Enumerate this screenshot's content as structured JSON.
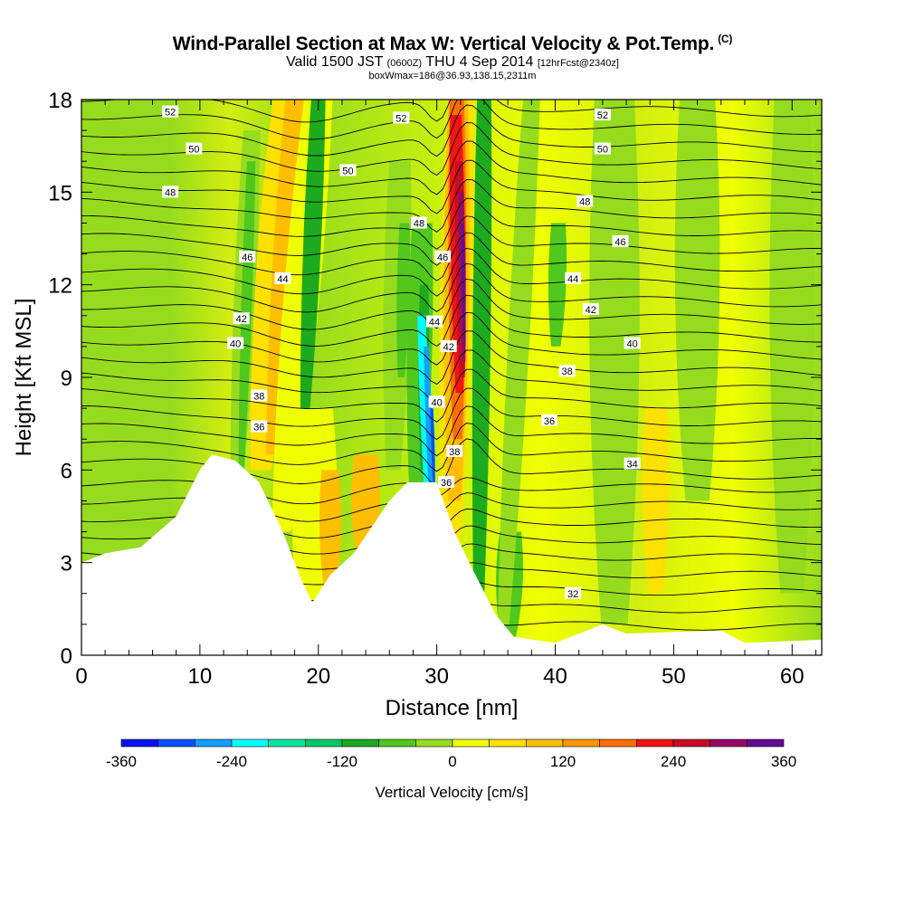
{
  "header": {
    "title": "Wind-Parallel Section at Max W: Vertical Velocity & Pot.Temp.",
    "copyright": "(C)",
    "valid_part1": "Valid 1500 JST",
    "valid_zulu": "(0600Z)",
    "valid_part2": "THU 4 Sep 2014",
    "forecast": "[12hrFcst@2340z]",
    "box_info": "boxWmax=186@36.93,138.15,2311m"
  },
  "chart_data": {
    "type": "heatmap",
    "xlabel": "Distance [nm]",
    "ylabel": "Height [Kft MSL]",
    "xlim": [
      0,
      62.5
    ],
    "ylim": [
      0,
      18
    ],
    "x_ticks": [
      0,
      10,
      20,
      30,
      40,
      50,
      60
    ],
    "y_ticks": [
      0,
      3,
      6,
      9,
      12,
      15,
      18
    ],
    "colorbar": {
      "label": "Vertical Velocity [cm/s]",
      "tick_values": [
        -360,
        -240,
        -120,
        0,
        120,
        240,
        360
      ],
      "colors": [
        "#0a14f0",
        "#0a50ff",
        "#10a0ff",
        "#00ffff",
        "#00e5a0",
        "#00c864",
        "#1eaa1e",
        "#50c81e",
        "#96dc1e",
        "#f0ff00",
        "#ffe100",
        "#ffbe00",
        "#ff9600",
        "#ff6e00",
        "#f01414",
        "#c80a28",
        "#960a64",
        "#640a96"
      ]
    },
    "terrain_profile": [
      [
        0,
        3
      ],
      [
        2,
        3.3
      ],
      [
        5,
        3.5
      ],
      [
        8,
        4.5
      ],
      [
        10,
        6
      ],
      [
        11,
        6.5
      ],
      [
        13,
        6.3
      ],
      [
        15,
        5.6
      ],
      [
        17,
        4
      ],
      [
        18.5,
        2.5
      ],
      [
        19.5,
        1.7
      ],
      [
        21,
        2.6
      ],
      [
        23,
        3.3
      ],
      [
        26,
        5
      ],
      [
        27.5,
        5.6
      ],
      [
        30,
        5.6
      ],
      [
        31.5,
        4
      ],
      [
        33,
        2.8
      ],
      [
        35,
        1.3
      ],
      [
        36.5,
        0.6
      ],
      [
        40,
        0.4
      ],
      [
        42,
        0.7
      ],
      [
        44,
        1
      ],
      [
        46,
        0.7
      ],
      [
        54,
        0.8
      ],
      [
        56,
        0.4
      ],
      [
        62.5,
        0.5
      ]
    ],
    "theta_contours": [
      32,
      34,
      36,
      38,
      40,
      42,
      44,
      46,
      48,
      50,
      52
    ],
    "theta_labels": [
      {
        "text": "52",
        "x": 7.5,
        "y": 17.6
      },
      {
        "text": "52",
        "x": 27,
        "y": 17.4
      },
      {
        "text": "52",
        "x": 44,
        "y": 17.5
      },
      {
        "text": "50",
        "x": 9.5,
        "y": 16.4
      },
      {
        "text": "50",
        "x": 22.5,
        "y": 15.7
      },
      {
        "text": "50",
        "x": 44,
        "y": 16.4
      },
      {
        "text": "48",
        "x": 7.5,
        "y": 15
      },
      {
        "text": "48",
        "x": 28.5,
        "y": 14
      },
      {
        "text": "48",
        "x": 42.5,
        "y": 14.7
      },
      {
        "text": "46",
        "x": 14,
        "y": 12.9
      },
      {
        "text": "46",
        "x": 30.5,
        "y": 12.9
      },
      {
        "text": "46",
        "x": 45.5,
        "y": 13.4
      },
      {
        "text": "44",
        "x": 17,
        "y": 12.2
      },
      {
        "text": "44",
        "x": 29.8,
        "y": 10.8
      },
      {
        "text": "44",
        "x": 41.5,
        "y": 12.2
      },
      {
        "text": "42",
        "x": 13.5,
        "y": 10.9
      },
      {
        "text": "42",
        "x": 31,
        "y": 10
      },
      {
        "text": "42",
        "x": 43,
        "y": 11.2
      },
      {
        "text": "40",
        "x": 13,
        "y": 10.1
      },
      {
        "text": "40",
        "x": 30,
        "y": 8.2
      },
      {
        "text": "40",
        "x": 46.5,
        "y": 10.1
      },
      {
        "text": "38",
        "x": 15,
        "y": 8.4
      },
      {
        "text": "38",
        "x": 41,
        "y": 9.2
      },
      {
        "text": "36",
        "x": 15,
        "y": 7.4
      },
      {
        "text": "36",
        "x": 39.5,
        "y": 7.6
      },
      {
        "text": "36",
        "x": 30.8,
        "y": 5.6
      },
      {
        "text": "38",
        "x": 31.5,
        "y": 6.6
      },
      {
        "text": "34",
        "x": 46.5,
        "y": 6.2
      },
      {
        "text": "32",
        "x": 41.5,
        "y": 2
      }
    ]
  }
}
